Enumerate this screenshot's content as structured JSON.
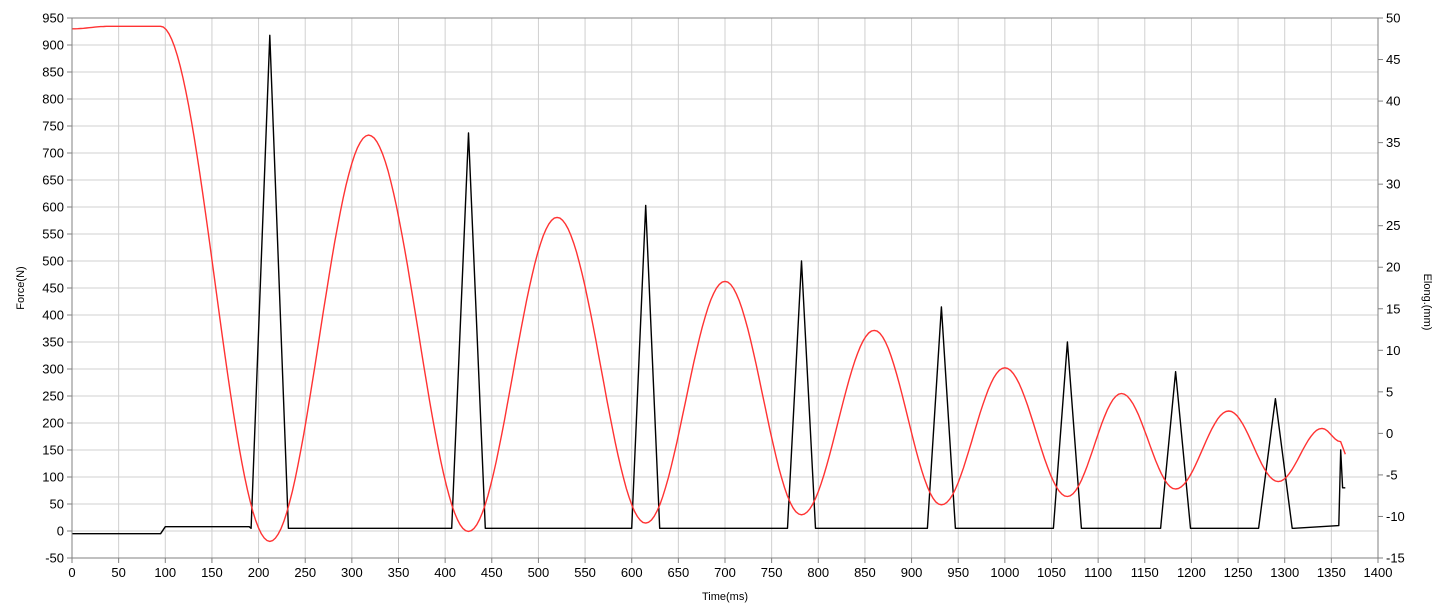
{
  "chart_data": {
    "type": "line",
    "xlabel": "Time(ms)",
    "ylabel": "Force(N)",
    "y2label": "Elong.(mm)",
    "xlim": [
      0,
      1400
    ],
    "ylim": [
      -50,
      950
    ],
    "y2lim": [
      -15,
      50
    ],
    "x_ticks": [
      "0",
      "50",
      "100",
      "150",
      "200",
      "250",
      "300",
      "350",
      "400",
      "450",
      "500",
      "550",
      "600",
      "650",
      "700",
      "750",
      "800",
      "850",
      "900",
      "950",
      "1000",
      "1050",
      "1100",
      "1150",
      "1200",
      "1250",
      "1300",
      "1350",
      "1400"
    ],
    "y_ticks": [
      "950",
      "900",
      "850",
      "800",
      "750",
      "700",
      "650",
      "600",
      "550",
      "500",
      "450",
      "400",
      "350",
      "300",
      "250",
      "200",
      "150",
      "100",
      "50",
      "0",
      "-50"
    ],
    "y2_ticks": [
      "50",
      "45",
      "40",
      "35",
      "30",
      "25",
      "20",
      "15",
      "10",
      "5",
      "0",
      "-5",
      "-10",
      "-15"
    ],
    "grid": true,
    "colors": {
      "force": "#000000",
      "elong": "#ff3333",
      "grid": "#d0d0d0"
    },
    "series": [
      {
        "axis": "left",
        "color": "#000000",
        "x": [
          0,
          95,
          100,
          190,
          192,
          212,
          232,
          234,
          405,
          407,
          425,
          443,
          445,
          598,
          600,
          615,
          630,
          632,
          765,
          767,
          782,
          797,
          799,
          915,
          917,
          932,
          947,
          949,
          1050,
          1052,
          1067,
          1082,
          1084,
          1165,
          1167,
          1183,
          1199,
          1201,
          1270,
          1272,
          1290,
          1308,
          1310,
          1358,
          1360,
          1362,
          1365
        ],
        "values": [
          -5,
          -5,
          8,
          8,
          5,
          918,
          5,
          5,
          5,
          5,
          737,
          5,
          5,
          5,
          5,
          603,
          5,
          5,
          5,
          5,
          500,
          5,
          5,
          5,
          5,
          415,
          5,
          5,
          5,
          5,
          350,
          5,
          5,
          5,
          5,
          295,
          5,
          5,
          5,
          5,
          245,
          5,
          5,
          10,
          150,
          80,
          80
        ]
      },
      {
        "axis": "right",
        "color": "#ff3333",
        "x": [
          0,
          40,
          95,
          212,
          318,
          425,
          520,
          615,
          700,
          782,
          860,
          932,
          1000,
          1067,
          1125,
          1183,
          1240,
          1293,
          1340,
          1360,
          1365
        ],
        "values": [
          48.7,
          49,
          49,
          -13,
          35.9,
          -11.8,
          26,
          -10.8,
          18.3,
          -9.8,
          12.4,
          -8.6,
          7.9,
          -7.6,
          4.8,
          -6.7,
          2.7,
          -5.8,
          0.6,
          -1,
          -2.5
        ]
      }
    ]
  }
}
